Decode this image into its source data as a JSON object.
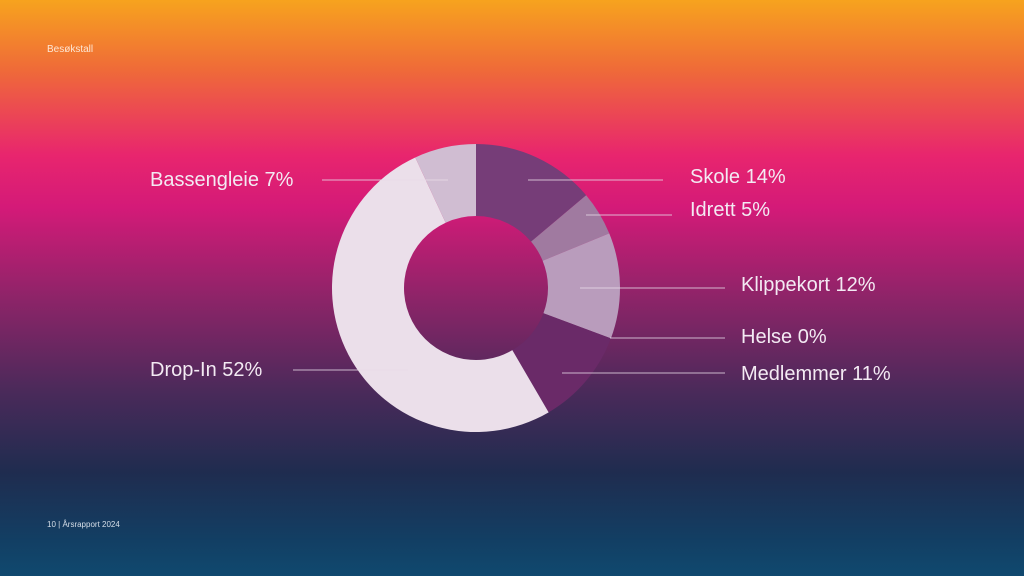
{
  "header": {
    "section_title": "Besøkstall"
  },
  "footer": {
    "page_number": "10",
    "report": "| Årsrapport 2024"
  },
  "chart_data": {
    "type": "pie",
    "donut": true,
    "title": "",
    "categories": [
      "Skole",
      "Idrett",
      "Klippekort",
      "Helse",
      "Medlemmer",
      "Drop-In",
      "Bassengleie"
    ],
    "values": [
      14,
      5,
      12,
      0,
      11,
      52,
      7
    ],
    "labels": [
      "Skole 14%",
      "Idrett 5%",
      "Klippekort 12%",
      "Helse 0%",
      "Medlemmer 11%",
      "Drop-In 52%",
      "Bassengleie 7%"
    ],
    "colors": [
      "#763d78",
      "#a07aa0",
      "#b99cbc",
      "#b99cbc",
      "#6a2a68",
      "#ebdfea",
      "#d0bdd2"
    ],
    "legend": "none"
  }
}
